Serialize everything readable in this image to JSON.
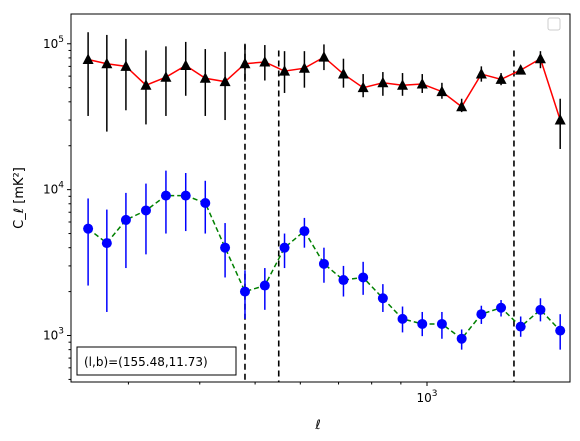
{
  "chart_data": {
    "type": "scatter",
    "title": "",
    "xlabel": "ℓ",
    "ylabel": "C_ℓ [mK²]",
    "xscale": "log",
    "yscale": "log",
    "xlim": [
      238,
      1780
    ],
    "ylim": [
      480,
      160000
    ],
    "xticks": [
      {
        "value": 1000,
        "base": "10",
        "exp": "3"
      }
    ],
    "yticks": [
      {
        "value": 1000,
        "base": "10",
        "exp": "3"
      },
      {
        "value": 10000,
        "base": "10",
        "exp": "4"
      },
      {
        "value": 100000,
        "base": "10",
        "exp": "5"
      }
    ],
    "grid": false,
    "legend": {
      "placement": "top-right",
      "entries": []
    },
    "annotation": "(l,b)=(155.48,11.73)",
    "vlines": [
      {
        "x": 480,
        "y_range": [
          480,
          100000
        ],
        "style": "dashed",
        "color": "#000000"
      },
      {
        "x": 550,
        "y_range": [
          480,
          90000
        ],
        "style": "dashed",
        "color": "#000000"
      },
      {
        "x": 1420,
        "y_range": [
          480,
          90000
        ],
        "style": "dashed",
        "color": "#000000"
      }
    ],
    "series": [
      {
        "marker": "triangle",
        "marker_color": "#000000",
        "line_color": "#ff0000",
        "line_style": "solid",
        "x": [
          255,
          275,
          297,
          322,
          349,
          378,
          409,
          443,
          480,
          520,
          563,
          610,
          660,
          714,
          773,
          837,
          906,
          981,
          1062,
          1150,
          1245,
          1348,
          1459,
          1580,
          1711
        ],
        "y": [
          78000,
          73000,
          70000,
          52000,
          59000,
          71000,
          58000,
          55000,
          73000,
          75000,
          65000,
          68000,
          81000,
          62000,
          50000,
          54000,
          52000,
          53000,
          47000,
          37000,
          62000,
          57000,
          66000,
          79000,
          30000
        ],
        "yerr_low": [
          32000,
          25000,
          35000,
          28000,
          32000,
          44000,
          32000,
          30000,
          55000,
          56000,
          46000,
          50000,
          66000,
          50000,
          43000,
          44000,
          44000,
          46000,
          42000,
          34000,
          55000,
          52000,
          62000,
          68000,
          19000
        ],
        "yerr_high": [
          120000,
          115000,
          108000,
          90000,
          96000,
          103000,
          92000,
          88000,
          98000,
          98000,
          89000,
          89000,
          99000,
          79000,
          62000,
          64000,
          63000,
          62000,
          54000,
          42000,
          70000,
          63000,
          71000,
          89000,
          42000
        ]
      },
      {
        "marker": "circle",
        "marker_color": "#0000ff",
        "line_color": "#008000",
        "line_style": "dashed",
        "x": [
          255,
          275,
          297,
          322,
          349,
          378,
          409,
          443,
          480,
          520,
          563,
          610,
          660,
          714,
          773,
          837,
          906,
          981,
          1062,
          1150,
          1245,
          1348,
          1459,
          1580,
          1711
        ],
        "y": [
          5400,
          4300,
          6200,
          7200,
          9100,
          9100,
          8100,
          4000,
          2000,
          2200,
          4000,
          5200,
          3100,
          2400,
          2500,
          1800,
          1300,
          1200,
          1200,
          950,
          1400,
          1550,
          1150,
          1500,
          1080
        ],
        "yerr_low": [
          2200,
          1450,
          2900,
          3600,
          5000,
          5200,
          5000,
          2500,
          1300,
          1500,
          2900,
          4000,
          2300,
          1850,
          1900,
          1450,
          1050,
          990,
          950,
          800,
          1200,
          1350,
          980,
          1250,
          800
        ],
        "yerr_high": [
          8700,
          7300,
          9500,
          11000,
          13500,
          13000,
          11500,
          5900,
          2800,
          2900,
          5000,
          6400,
          4000,
          3000,
          3200,
          2250,
          1580,
          1450,
          1450,
          1100,
          1600,
          1750,
          1350,
          1800,
          1400
        ]
      }
    ]
  }
}
